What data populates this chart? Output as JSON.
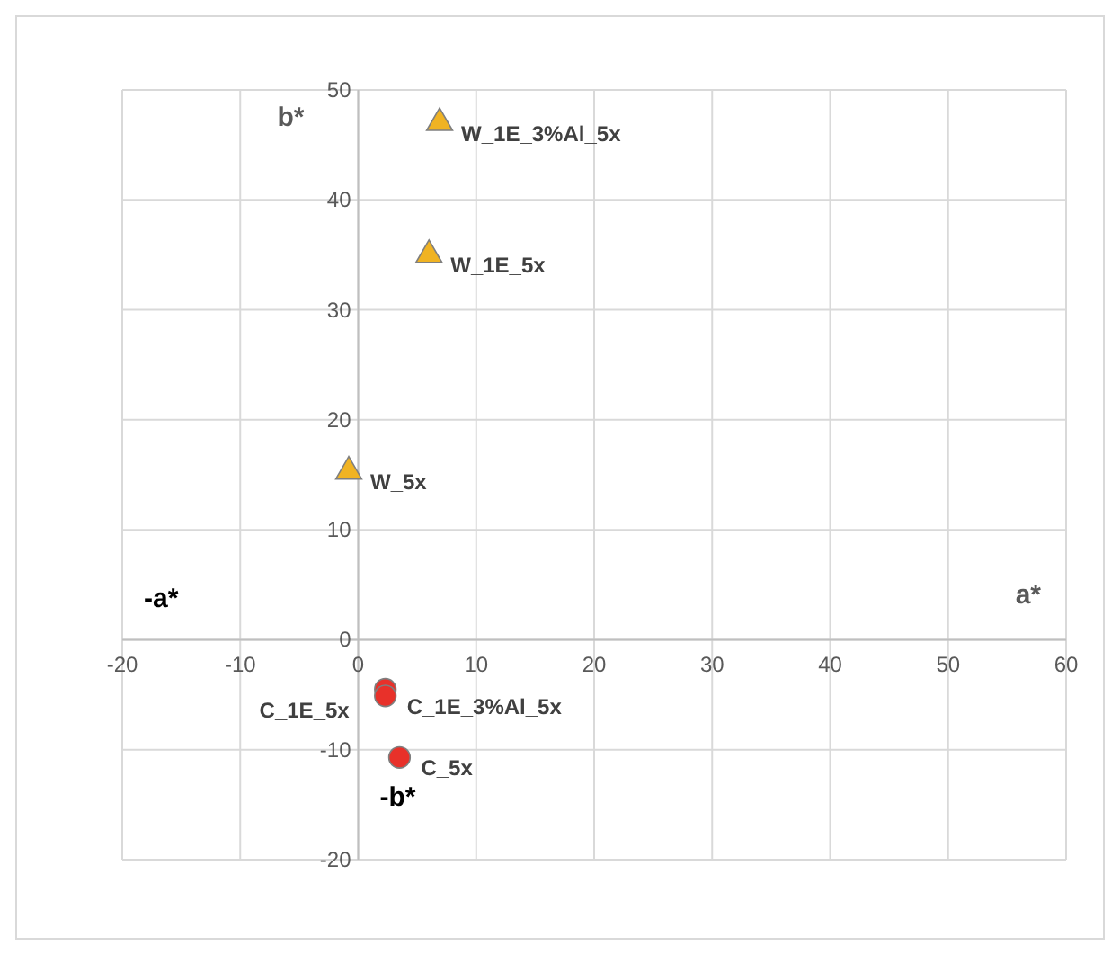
{
  "chart_data": {
    "type": "scatter",
    "xlabel": "a*",
    "ylabel": "b*",
    "xlim": [
      -20,
      60
    ],
    "xticks": [
      -20,
      -10,
      0,
      10,
      20,
      30,
      40,
      50,
      60
    ],
    "ylim": [
      -20,
      50
    ],
    "yticks": [
      -20,
      -10,
      0,
      10,
      20,
      30,
      40,
      50
    ],
    "grid": true,
    "series": [
      {
        "color": "#f0b323",
        "marker": "triangle",
        "x": [
          6.9,
          6.0,
          -0.8
        ],
        "values": [
          47.0,
          35.0,
          15.3
        ]
      },
      {
        "color": "#e8312a",
        "marker": "circle",
        "x": [
          2.3,
          2.3,
          3.5
        ],
        "values": [
          -4.5,
          -5.1,
          -10.7
        ]
      }
    ],
    "annotations": [
      "-a*",
      "-b*",
      {
        "text": "W_1E_3%Al_5x",
        "x": 6.9,
        "y": 47.0
      },
      {
        "text": "W_1E_5x",
        "x": 6.0,
        "y": 35.0
      },
      {
        "text": "W_5x",
        "x": -0.8,
        "y": 15.3
      },
      {
        "text": "C_1E_3%Al_5x",
        "x": 2.3,
        "y": -5.1
      },
      {
        "text": "C_1E_5x",
        "x": 2.3,
        "y": -4.5
      },
      {
        "text": "C_5x",
        "x": 3.5,
        "y": -10.7
      }
    ]
  }
}
